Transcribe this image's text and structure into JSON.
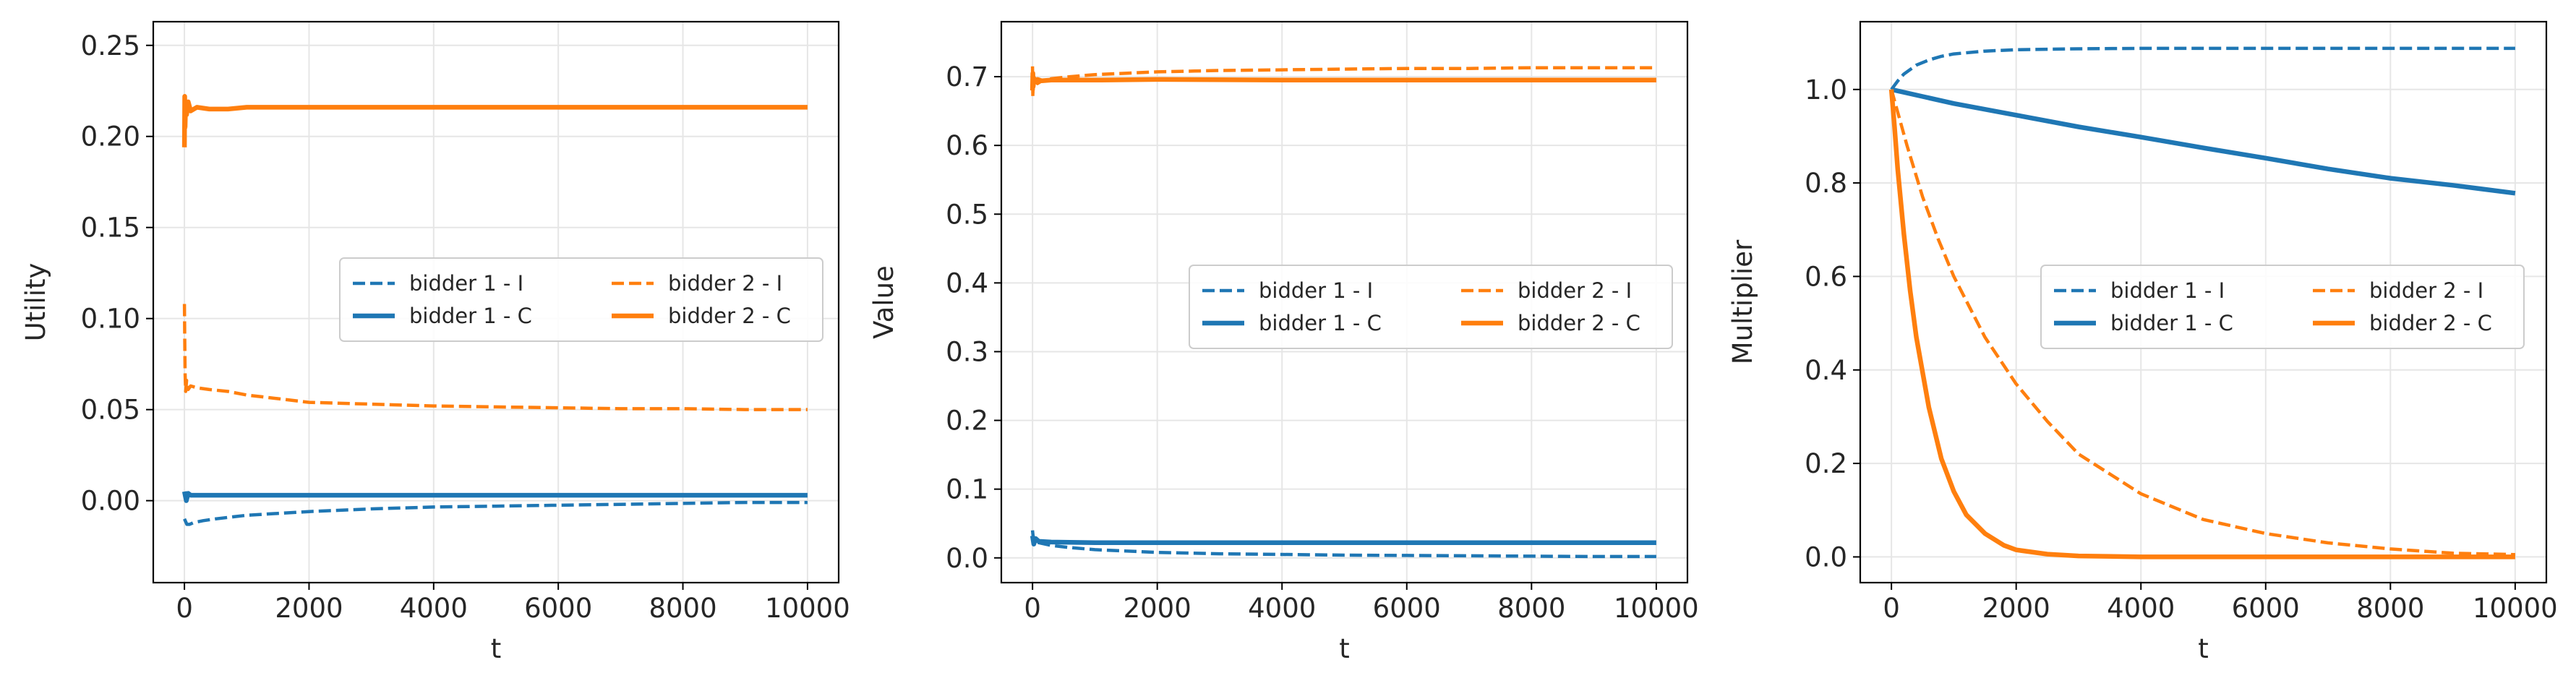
{
  "colors": {
    "bidder1": "#1f77b4",
    "bidder2": "#ff7f0e"
  },
  "chart_data": [
    {
      "type": "line",
      "xlabel": "t",
      "ylabel": "Utility",
      "xlim": [
        -500,
        10500
      ],
      "ylim": [
        -0.045,
        0.263
      ],
      "xticks": [
        0,
        2000,
        4000,
        6000,
        8000,
        10000
      ],
      "yticks": [
        0.0,
        0.05,
        0.1,
        0.15,
        0.2,
        0.25
      ],
      "ytick_labels": [
        "0.00",
        "0.05",
        "0.10",
        "0.15",
        "0.20",
        "0.25"
      ],
      "grid": true,
      "legend": {
        "placement": "center-right",
        "ncol": 2
      },
      "series": [
        {
          "name": "bidder 1 - I",
          "color": "bidder1",
          "style": "dashed",
          "x": [
            0,
            40,
            80,
            150,
            300,
            500,
            1000,
            2000,
            3000,
            4000,
            5000,
            6000,
            7000,
            8000,
            9000,
            10000
          ],
          "y": [
            -0.01,
            -0.013,
            -0.013,
            -0.012,
            -0.011,
            -0.01,
            -0.008,
            -0.006,
            -0.0045,
            -0.0035,
            -0.003,
            -0.0025,
            -0.002,
            -0.0015,
            -0.001,
            -0.001
          ]
        },
        {
          "name": "bidder 1 - C",
          "color": "bidder1",
          "style": "solid",
          "x": [
            0,
            30,
            60,
            100,
            300,
            1000,
            2000,
            4000,
            6000,
            8000,
            10000
          ],
          "y": [
            0.005,
            0.0,
            0.004,
            0.003,
            0.003,
            0.003,
            0.003,
            0.003,
            0.003,
            0.003,
            0.003
          ]
        },
        {
          "name": "bidder 2 - I",
          "color": "bidder2",
          "style": "dashed",
          "x": [
            0,
            5,
            10,
            20,
            35,
            60,
            100,
            200,
            400,
            700,
            1000,
            1500,
            2000,
            3000,
            4000,
            5000,
            6000,
            7000,
            8000,
            9000,
            10000
          ],
          "y": [
            0.108,
            0.09,
            0.07,
            0.06,
            0.066,
            0.061,
            0.063,
            0.062,
            0.061,
            0.06,
            0.058,
            0.056,
            0.054,
            0.053,
            0.052,
            0.0515,
            0.051,
            0.0505,
            0.0505,
            0.05,
            0.05
          ]
        },
        {
          "name": "bidder 2 - C",
          "color": "bidder2",
          "style": "solid",
          "x": [
            0,
            5,
            10,
            20,
            35,
            60,
            100,
            200,
            400,
            700,
            1000,
            1500,
            2000,
            3000,
            4000,
            6000,
            8000,
            10000
          ],
          "y": [
            0.194,
            0.222,
            0.205,
            0.218,
            0.212,
            0.219,
            0.214,
            0.216,
            0.215,
            0.215,
            0.216,
            0.216,
            0.216,
            0.216,
            0.216,
            0.216,
            0.216,
            0.216
          ]
        }
      ]
    },
    {
      "type": "line",
      "xlabel": "t",
      "ylabel": "Value",
      "xlim": [
        -500,
        10500
      ],
      "ylim": [
        -0.036,
        0.78
      ],
      "xticks": [
        0,
        2000,
        4000,
        6000,
        8000,
        10000
      ],
      "yticks": [
        0.0,
        0.1,
        0.2,
        0.3,
        0.4,
        0.5,
        0.6,
        0.7
      ],
      "ytick_labels": [
        "0.0",
        "0.1",
        "0.2",
        "0.3",
        "0.4",
        "0.5",
        "0.6",
        "0.7"
      ],
      "grid": true,
      "legend": {
        "placement": "center-right",
        "ncol": 2
      },
      "series": [
        {
          "name": "bidder 1 - I",
          "color": "bidder1",
          "style": "dashed",
          "x": [
            0,
            20,
            50,
            100,
            300,
            600,
            1000,
            2000,
            3000,
            4000,
            5000,
            6000,
            7000,
            8000,
            9000,
            10000
          ],
          "y": [
            0.04,
            0.022,
            0.024,
            0.022,
            0.018,
            0.015,
            0.012,
            0.008,
            0.006,
            0.005,
            0.004,
            0.0035,
            0.003,
            0.0025,
            0.002,
            0.002
          ]
        },
        {
          "name": "bidder 1 - C",
          "color": "bidder1",
          "style": "solid",
          "x": [
            0,
            20,
            50,
            100,
            300,
            1000,
            2000,
            4000,
            6000,
            8000,
            10000
          ],
          "y": [
            0.032,
            0.02,
            0.028,
            0.024,
            0.023,
            0.022,
            0.022,
            0.022,
            0.022,
            0.022,
            0.022
          ]
        },
        {
          "name": "bidder 2 - I",
          "color": "bidder2",
          "style": "dashed",
          "x": [
            0,
            5,
            10,
            20,
            40,
            80,
            150,
            300,
            600,
            1000,
            2000,
            3000,
            4000,
            5000,
            6000,
            7000,
            8000,
            9000,
            10000
          ],
          "y": [
            0.715,
            0.67,
            0.7,
            0.685,
            0.695,
            0.69,
            0.694,
            0.697,
            0.7,
            0.703,
            0.707,
            0.709,
            0.71,
            0.711,
            0.712,
            0.712,
            0.713,
            0.713,
            0.713
          ]
        },
        {
          "name": "bidder 2 - C",
          "color": "bidder2",
          "style": "solid",
          "x": [
            0,
            5,
            10,
            20,
            40,
            80,
            150,
            300,
            600,
            1000,
            2000,
            4000,
            6000,
            8000,
            10000
          ],
          "y": [
            0.68,
            0.705,
            0.69,
            0.698,
            0.692,
            0.696,
            0.694,
            0.695,
            0.695,
            0.695,
            0.696,
            0.695,
            0.695,
            0.695,
            0.695
          ]
        }
      ]
    },
    {
      "type": "line",
      "xlabel": "t",
      "ylabel": "Multiplier",
      "xlim": [
        -500,
        10500
      ],
      "ylim": [
        -0.055,
        1.145
      ],
      "xticks": [
        0,
        2000,
        4000,
        6000,
        8000,
        10000
      ],
      "yticks": [
        0.0,
        0.2,
        0.4,
        0.6,
        0.8,
        1.0
      ],
      "ytick_labels": [
        "0.0",
        "0.2",
        "0.4",
        "0.6",
        "0.8",
        "1.0"
      ],
      "grid": true,
      "legend": {
        "placement": "center-right",
        "ncol": 2
      },
      "series": [
        {
          "name": "bidder 1 - I",
          "color": "bidder1",
          "style": "dashed",
          "x": [
            0,
            100,
            200,
            400,
            600,
            800,
            1000,
            1500,
            2000,
            3000,
            4000,
            6000,
            8000,
            10000
          ],
          "y": [
            1.0,
            1.018,
            1.033,
            1.052,
            1.063,
            1.071,
            1.076,
            1.082,
            1.085,
            1.087,
            1.088,
            1.088,
            1.088,
            1.088
          ]
        },
        {
          "name": "bidder 1 - C",
          "color": "bidder1",
          "style": "solid",
          "x": [
            0,
            500,
            1000,
            2000,
            3000,
            4000,
            5000,
            6000,
            7000,
            8000,
            9000,
            10000
          ],
          "y": [
            1.0,
            0.985,
            0.97,
            0.945,
            0.92,
            0.898,
            0.875,
            0.853,
            0.83,
            0.81,
            0.795,
            0.778
          ]
        },
        {
          "name": "bidder 2 - I",
          "color": "bidder2",
          "style": "dashed",
          "x": [
            0,
            250,
            500,
            750,
            1000,
            1500,
            2000,
            2500,
            3000,
            4000,
            5000,
            6000,
            7000,
            8000,
            9000,
            10000
          ],
          "y": [
            1.0,
            0.88,
            0.77,
            0.68,
            0.6,
            0.47,
            0.37,
            0.29,
            0.22,
            0.135,
            0.08,
            0.05,
            0.03,
            0.017,
            0.008,
            0.005
          ]
        },
        {
          "name": "bidder 2 - C",
          "color": "bidder2",
          "style": "solid",
          "x": [
            0,
            50,
            100,
            200,
            300,
            400,
            600,
            800,
            1000,
            1200,
            1500,
            1800,
            2000,
            2500,
            3000,
            4000,
            6000,
            8000,
            10000
          ],
          "y": [
            1.0,
            0.92,
            0.83,
            0.69,
            0.57,
            0.47,
            0.32,
            0.21,
            0.14,
            0.09,
            0.05,
            0.025,
            0.015,
            0.006,
            0.002,
            0.0,
            0.0,
            0.0,
            0.0
          ]
        }
      ]
    }
  ]
}
